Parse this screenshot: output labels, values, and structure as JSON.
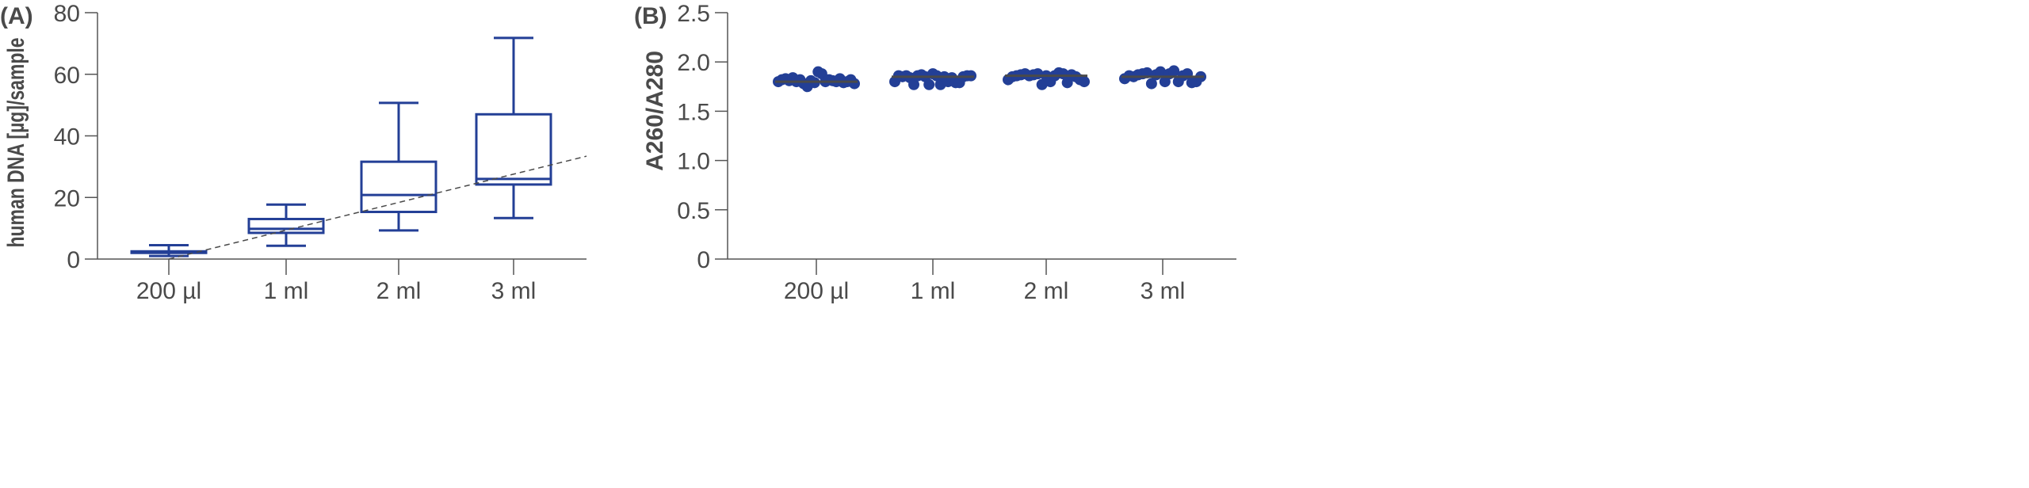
{
  "colors": {
    "series": "#233f96",
    "axis": "#555555",
    "median_line": "#4a4a4a",
    "trend": "#4a4a4a"
  },
  "chart_data": [
    {
      "panel": "(A)",
      "type": "box",
      "categories": [
        "200 µl",
        "1 ml",
        "2 ml",
        "3 ml"
      ],
      "ylabel": "human  DNA [µg]/sample",
      "xlabel": "",
      "ylim": [
        0,
        80
      ],
      "yticks": [
        "0",
        "20",
        "40",
        "60",
        "80"
      ],
      "grid": false,
      "boxes": [
        {
          "min": 1.0,
          "q1": 2.0,
          "median": 2.2,
          "q3": 2.5,
          "max": 4.5
        },
        {
          "min": 4.3,
          "q1": 8.5,
          "median": 9.8,
          "q3": 13.0,
          "max": 17.7
        },
        {
          "min": 9.3,
          "q1": 15.3,
          "median": 20.8,
          "q3": 31.6,
          "max": 50.7
        },
        {
          "min": 13.3,
          "q1": 24.2,
          "median": 26.0,
          "q3": 47.0,
          "max": 71.8
        }
      ],
      "trend_line": {
        "style": "dashed",
        "from": {
          "category": "200 µl",
          "y": 0
        },
        "to_end_y": 33.4
      }
    },
    {
      "panel": "(B)",
      "type": "scatter",
      "categories": [
        "200 µl",
        "1 ml",
        "2 ml",
        "3 ml"
      ],
      "ylabel": "A260/A280",
      "ylabel_parts": {
        "main": "A",
        "sub1": "260",
        "slash": "/A",
        "sub2": "280"
      },
      "xlabel": "",
      "ylim": [
        0,
        2.5
      ],
      "yticks": [
        "0",
        "0.5",
        "1.0",
        "1.5",
        "2.0",
        "2.5"
      ],
      "grid": false,
      "medians": [
        1.8,
        1.85,
        1.86,
        1.85
      ],
      "points": [
        [
          1.8,
          1.82,
          1.83,
          1.81,
          1.84,
          1.8,
          1.82,
          1.78,
          1.75,
          1.81,
          1.79,
          1.9,
          1.88,
          1.8,
          1.82,
          1.81,
          1.8,
          1.83,
          1.79,
          1.8,
          1.82,
          1.78
        ],
        [
          1.8,
          1.86,
          1.85,
          1.86,
          1.84,
          1.77,
          1.86,
          1.87,
          1.85,
          1.77,
          1.88,
          1.86,
          1.77,
          1.85,
          1.8,
          1.84,
          1.79,
          1.79,
          1.85,
          1.86,
          1.86
        ],
        [
          1.82,
          1.85,
          1.86,
          1.87,
          1.88,
          1.86,
          1.87,
          1.88,
          1.77,
          1.86,
          1.8,
          1.86,
          1.89,
          1.88,
          1.79,
          1.87,
          1.85,
          1.82,
          1.8
        ],
        [
          1.83,
          1.86,
          1.85,
          1.87,
          1.88,
          1.89,
          1.78,
          1.87,
          1.9,
          1.8,
          1.88,
          1.91,
          1.8,
          1.86,
          1.88,
          1.79,
          1.8,
          1.85
        ]
      ]
    }
  ]
}
